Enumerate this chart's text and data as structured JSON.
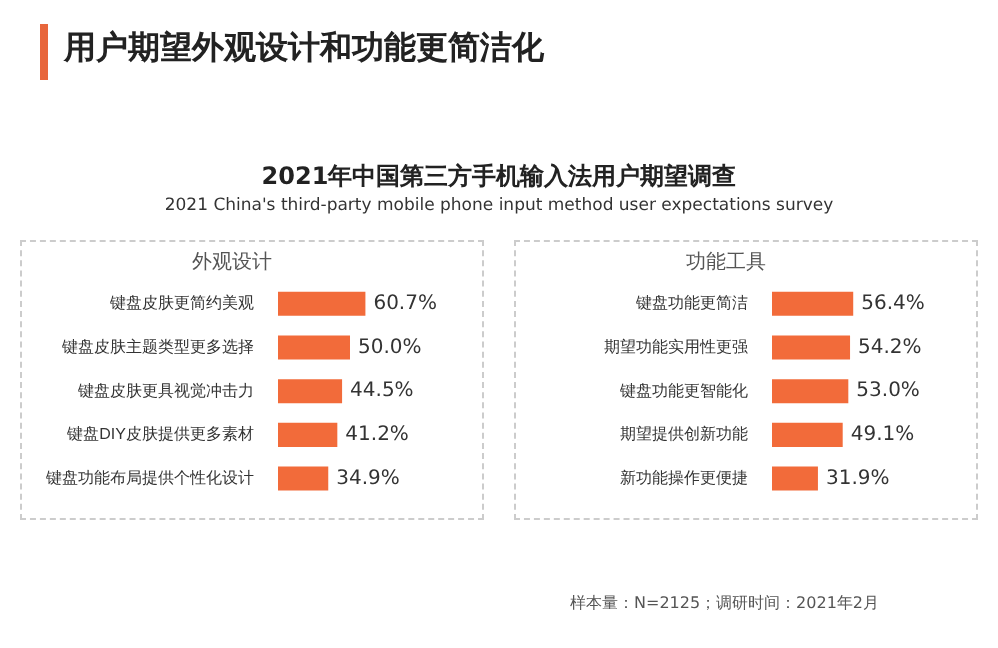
{
  "chart_data": [
    {
      "type": "other",
      "title": "用户期望外观设计和功能更简洁化",
      "subtitle": "2021年中国第三方手机输入法用户期望调查",
      "annotations": [
        "2021 China's third-party mobile phone input method user expectations survey",
        "样本量：N=2125；调研时间：2021年2月"
      ]
    },
    {
      "type": "bar",
      "title": "外观设计",
      "orientation": "horizontal",
      "categories": [
        "键盘皮肤更简约美观",
        "键盘皮肤主题类型更多选择",
        "键盘皮肤更具视觉冲击力",
        "键盘DIY皮肤提供更多素材",
        "键盘功能布局提供个性化设计"
      ],
      "values": [
        60.7,
        50.0,
        44.5,
        41.2,
        34.9
      ],
      "value_labels": [
        "60.7%",
        "50.0%",
        "44.5%",
        "41.2%",
        "34.9%"
      ],
      "color": "#f26b3a",
      "tick_labels": "y"
    },
    {
      "type": "bar",
      "title": "功能工具",
      "orientation": "horizontal",
      "categories": [
        "键盘功能更简洁",
        "期望功能实用性更强",
        "键盘功能更智能化",
        "期望提供创新功能",
        "新功能操作更便捷"
      ],
      "values": [
        56.4,
        54.2,
        53.0,
        49.1,
        31.9
      ],
      "value_labels": [
        "56.4%",
        "54.2%",
        "53.0%",
        "49.1%",
        "31.9%"
      ],
      "color": "#f26b3a",
      "tick_labels": "y"
    }
  ]
}
